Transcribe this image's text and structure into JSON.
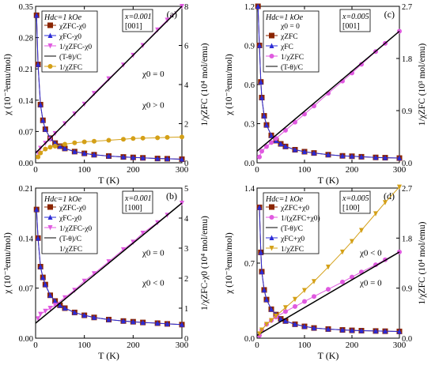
{
  "colors": {
    "darkred": "#8b2500",
    "blue": "#2b2bd6",
    "magenta": "#e05ae0",
    "orange": "#d4a017",
    "black": "#000000",
    "purple": "#8a2be2",
    "yellow": "#f5d312"
  },
  "chart_data": [
    {
      "type": "scatter",
      "panel_label": "(a)",
      "xlabel": "T  (K)",
      "ylabel_left": "χ  (10⁻³emu/mol)",
      "ylabel_right": "1/χZFC  (10⁴ mol/emu)",
      "xlim": [
        0,
        300
      ],
      "ylim_left": [
        0,
        0.35
      ],
      "ylim_right": [
        0,
        8
      ],
      "x_ticks": [
        "0",
        "100",
        "200",
        "300"
      ],
      "y_ticks_left": [
        "0.00",
        "0.07",
        "0.14",
        "0.21",
        "0.28",
        "0.35"
      ],
      "y_ticks_right": [
        "0",
        "2",
        "4",
        "6",
        "8"
      ],
      "info_box": "x=0.001\n[001]",
      "field_label": "Hdc=1 kOe",
      "legend": [
        "χZFC-χ0",
        "χFC-χ0",
        "1/χZFC-χ0",
        "(T-θ)/C",
        "1/χZFC"
      ],
      "annotations": [
        "χ0 = 0",
        "χ0 > 0"
      ],
      "series": [
        {
          "name": "χZFC-χ0",
          "axis": "left",
          "marker": "square",
          "color": "darkred",
          "x": [
            2,
            5,
            10,
            15,
            20,
            30,
            40,
            50,
            60,
            80,
            100,
            120,
            150,
            180,
            200,
            220,
            250,
            270,
            300
          ],
          "y": [
            0.33,
            0.22,
            0.13,
            0.095,
            0.075,
            0.055,
            0.044,
            0.037,
            0.032,
            0.025,
            0.021,
            0.018,
            0.015,
            0.013,
            0.012,
            0.011,
            0.0095,
            0.009,
            0.008
          ]
        },
        {
          "name": "χFC-χ0",
          "axis": "left",
          "marker": "triangle",
          "color": "blue",
          "x": [
            2,
            5,
            10,
            15,
            20,
            30,
            40,
            50,
            60,
            80,
            100,
            120,
            150,
            180,
            200,
            220,
            250,
            270,
            300
          ],
          "y": [
            0.33,
            0.22,
            0.13,
            0.095,
            0.075,
            0.055,
            0.044,
            0.037,
            0.032,
            0.025,
            0.021,
            0.018,
            0.015,
            0.013,
            0.012,
            0.011,
            0.0095,
            0.009,
            0.008
          ]
        },
        {
          "name": "1/χZFC-χ0",
          "axis": "right",
          "marker": "invtriangle",
          "color": "magenta",
          "x": [
            5,
            10,
            20,
            30,
            40,
            60,
            80,
            100,
            120,
            150,
            180,
            200,
            220,
            250,
            270,
            300
          ],
          "y": [
            0.5,
            0.75,
            1.0,
            1.2,
            1.5,
            2.0,
            2.5,
            3.0,
            3.55,
            4.3,
            5.0,
            5.5,
            6.0,
            6.8,
            7.3,
            8.0
          ]
        },
        {
          "name": "(T-θ)/C",
          "axis": "right",
          "marker": "line",
          "color": "black",
          "x": [
            0,
            300
          ],
          "y": [
            0.5,
            8.0
          ]
        },
        {
          "name": "1/χZFC",
          "axis": "right",
          "marker": "circle",
          "color": "orange",
          "x": [
            5,
            10,
            20,
            30,
            40,
            60,
            80,
            100,
            120,
            150,
            180,
            200,
            220,
            250,
            270,
            300
          ],
          "y": [
            0.3,
            0.5,
            0.7,
            0.8,
            0.85,
            0.95,
            1.02,
            1.07,
            1.1,
            1.15,
            1.2,
            1.24,
            1.26,
            1.28,
            1.3,
            1.32
          ]
        }
      ]
    },
    {
      "type": "scatter",
      "panel_label": "(c)",
      "xlabel": "T  (K)",
      "ylabel_left": "χ  (10⁻³emu/mol)",
      "ylabel_right": "1/χZFC  (10³ mol/emu)",
      "xlim": [
        0,
        300
      ],
      "ylim_left": [
        0,
        1.2
      ],
      "ylim_right": [
        0,
        2.7
      ],
      "x_ticks": [
        "0",
        "100",
        "200",
        "300"
      ],
      "y_ticks_left": [
        "0.0",
        "0.3",
        "0.6",
        "0.9",
        "1.2"
      ],
      "y_ticks_right": [
        "0.0",
        "0.9",
        "1.8",
        "2.7"
      ],
      "info_box": "x=0.005\n[001]",
      "field_label": "Hdc=1 kOe",
      "legend": [
        "χ0 = 0",
        "χZFC",
        "χFC",
        "1/χZFC",
        "(T-θ)/C"
      ],
      "annotations": [],
      "series": [
        {
          "name": "χZFC",
          "axis": "left",
          "marker": "square",
          "color": "darkred",
          "x": [
            2,
            5,
            8,
            10,
            15,
            20,
            30,
            40,
            50,
            60,
            80,
            100,
            120,
            150,
            180,
            200,
            220,
            250,
            270,
            300
          ],
          "y": [
            1.2,
            0.9,
            0.62,
            0.5,
            0.36,
            0.29,
            0.21,
            0.17,
            0.145,
            0.125,
            0.1,
            0.085,
            0.075,
            0.062,
            0.053,
            0.05,
            0.046,
            0.041,
            0.039,
            0.036
          ]
        },
        {
          "name": "χFC",
          "axis": "left",
          "marker": "triangle",
          "color": "blue",
          "x": [
            2,
            5,
            8,
            10,
            15,
            20,
            30,
            40,
            50,
            60,
            80,
            100,
            120,
            150,
            180,
            200,
            220,
            250,
            270,
            300
          ],
          "y": [
            1.2,
            0.9,
            0.62,
            0.5,
            0.36,
            0.29,
            0.21,
            0.17,
            0.145,
            0.125,
            0.1,
            0.085,
            0.075,
            0.062,
            0.053,
            0.05,
            0.046,
            0.041,
            0.039,
            0.036
          ]
        },
        {
          "name": "1/χZFC",
          "axis": "right",
          "marker": "circle",
          "color": "magenta",
          "x": [
            5,
            10,
            20,
            30,
            40,
            60,
            80,
            100,
            120,
            150,
            180,
            200,
            220,
            250,
            270,
            300
          ],
          "y": [
            0.1,
            0.2,
            0.28,
            0.35,
            0.42,
            0.56,
            0.7,
            0.84,
            0.98,
            1.2,
            1.41,
            1.55,
            1.7,
            1.92,
            2.06,
            2.27
          ]
        },
        {
          "name": "(T-θ)/C",
          "axis": "right",
          "marker": "line",
          "color": "black",
          "x": [
            0,
            300
          ],
          "y": [
            0.2,
            2.27
          ]
        }
      ]
    },
    {
      "type": "scatter",
      "panel_label": "(b)",
      "xlabel": "T  (K)",
      "ylabel_left": "χ  (10⁻³emu/mol)",
      "ylabel_right": "1/χZFC-χ0  (10⁴ mol/emu)",
      "xlim": [
        0,
        300
      ],
      "ylim_left": [
        0,
        0.21
      ],
      "ylim_right": [
        0,
        5
      ],
      "x_ticks": [
        "0",
        "100",
        "200",
        "300"
      ],
      "y_ticks_left": [
        "0.00",
        "0.07",
        "0.14",
        "0.21"
      ],
      "y_ticks_right": [
        "0",
        "1",
        "2",
        "3",
        "4",
        "5"
      ],
      "info_box": "x=0.001\n[100]",
      "field_label": "Hdc=1 kOe",
      "legend": [
        "χZFC-χ0",
        "χFC-χ0",
        "1/χZFC-χ0",
        "(T-θ)/C",
        "1/χZFC"
      ],
      "annotations": [
        "χ0 = 0",
        "χ0 < 0"
      ],
      "series": [
        {
          "name": "χZFC-χ0",
          "axis": "left",
          "marker": "square",
          "color": "darkred",
          "x": [
            2,
            5,
            10,
            15,
            20,
            30,
            40,
            50,
            60,
            80,
            100,
            120,
            150,
            180,
            200,
            220,
            250,
            270,
            300
          ],
          "y": [
            0.18,
            0.14,
            0.1,
            0.085,
            0.075,
            0.06,
            0.052,
            0.046,
            0.042,
            0.036,
            0.032,
            0.029,
            0.026,
            0.024,
            0.023,
            0.022,
            0.021,
            0.02,
            0.019
          ]
        },
        {
          "name": "χFC-χ0",
          "axis": "left",
          "marker": "triangle",
          "color": "blue",
          "x": [
            2,
            5,
            10,
            15,
            20,
            30,
            40,
            50,
            60,
            80,
            100,
            120,
            150,
            180,
            200,
            220,
            250,
            270,
            300
          ],
          "y": [
            0.18,
            0.14,
            0.1,
            0.085,
            0.075,
            0.06,
            0.052,
            0.046,
            0.042,
            0.036,
            0.032,
            0.029,
            0.026,
            0.024,
            0.023,
            0.022,
            0.021,
            0.02,
            0.019
          ]
        },
        {
          "name": "1/χZFC-χ0",
          "axis": "right",
          "marker": "invtriangle",
          "color": "magenta",
          "x": [
            5,
            10,
            20,
            30,
            40,
            60,
            80,
            100,
            120,
            150,
            180,
            200,
            220,
            250,
            270,
            300
          ],
          "y": [
            0.65,
            0.8,
            0.9,
            1.0,
            1.1,
            1.35,
            1.6,
            1.9,
            2.15,
            2.55,
            2.95,
            3.2,
            3.5,
            3.85,
            4.1,
            4.5
          ]
        },
        {
          "name": "(T-θ)/C",
          "axis": "right",
          "marker": "line",
          "color": "black",
          "x": [
            0,
            300
          ],
          "y": [
            0.5,
            4.5
          ]
        }
      ]
    },
    {
      "type": "scatter",
      "panel_label": "(d)",
      "xlabel": "T  (K)",
      "ylabel_left": "χ  (10⁻³emu/mol)",
      "ylabel_right": "1/χZFC  (10⁴ mol/emu)",
      "xlim": [
        0,
        300
      ],
      "ylim_left": [
        0,
        1.4
      ],
      "ylim_right": [
        0,
        2.7
      ],
      "x_ticks": [
        "0",
        "100",
        "200",
        "300"
      ],
      "y_ticks_left": [
        "0.0",
        "0.7",
        "1.4"
      ],
      "y_ticks_right": [
        "0.0",
        "0.9",
        "1.8",
        "2.7"
      ],
      "info_box": "x=0.005\n[100]",
      "field_label": "Hdc=1 kOe",
      "legend": [
        "χZFC+χ0",
        "1/(χZFC+χ0)",
        "(T-θ)/C",
        "χFC+χ0",
        "1/χZFC"
      ],
      "annotations": [
        "χ0 < 0",
        "χ0 = 0"
      ],
      "series": [
        {
          "name": "χZFC+χ0",
          "axis": "left",
          "marker": "square",
          "color": "darkred",
          "x": [
            5,
            8,
            10,
            15,
            20,
            30,
            40,
            50,
            60,
            80,
            100,
            120,
            150,
            180,
            200,
            220,
            250,
            270,
            300
          ],
          "y": [
            1.22,
            0.8,
            0.62,
            0.45,
            0.36,
            0.27,
            0.22,
            0.18,
            0.16,
            0.13,
            0.11,
            0.095,
            0.085,
            0.077,
            0.073,
            0.07,
            0.067,
            0.065,
            0.063
          ]
        },
        {
          "name": "χFC+χ0",
          "axis": "left",
          "marker": "triangle",
          "color": "blue",
          "x": [
            5,
            8,
            10,
            15,
            20,
            30,
            40,
            50,
            60,
            80,
            100,
            120,
            150,
            180,
            200,
            220,
            250,
            270,
            300
          ],
          "y": [
            1.22,
            0.8,
            0.62,
            0.45,
            0.36,
            0.27,
            0.22,
            0.18,
            0.16,
            0.13,
            0.11,
            0.095,
            0.085,
            0.077,
            0.073,
            0.07,
            0.067,
            0.065,
            0.063
          ]
        },
        {
          "name": "1/(χZFC+χ0)",
          "axis": "right",
          "marker": "circle",
          "color": "magenta",
          "x": [
            5,
            10,
            20,
            30,
            40,
            60,
            80,
            100,
            120,
            150,
            180,
            200,
            220,
            250,
            270,
            300
          ],
          "y": [
            0.05,
            0.15,
            0.25,
            0.32,
            0.38,
            0.48,
            0.57,
            0.66,
            0.75,
            0.88,
            1.01,
            1.1,
            1.19,
            1.32,
            1.41,
            1.55
          ]
        },
        {
          "name": "(T-θ)/C",
          "axis": "right",
          "marker": "line",
          "color": "black",
          "x": [
            0,
            300
          ],
          "y": [
            0.05,
            1.55
          ]
        },
        {
          "name": "1/χZFC",
          "axis": "right",
          "marker": "invtriangle",
          "color": "orange",
          "x": [
            5,
            10,
            20,
            30,
            40,
            60,
            80,
            100,
            120,
            150,
            180,
            200,
            220,
            250,
            270,
            300
          ],
          "y": [
            0.08,
            0.15,
            0.25,
            0.32,
            0.4,
            0.55,
            0.7,
            0.86,
            1.02,
            1.28,
            1.55,
            1.74,
            1.94,
            2.24,
            2.44,
            2.72
          ]
        }
      ]
    }
  ]
}
